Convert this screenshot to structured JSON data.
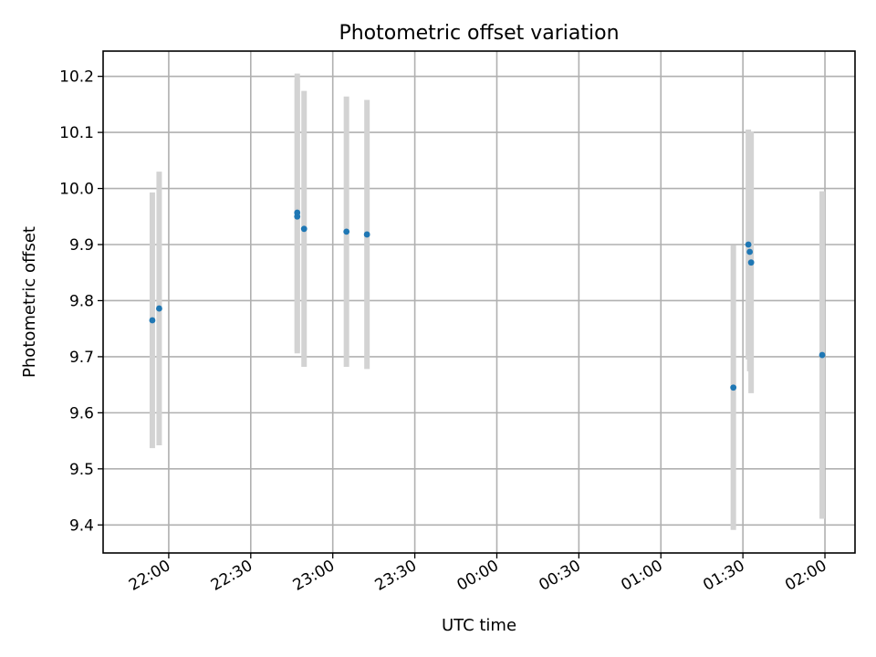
{
  "chart_data": {
    "type": "scatter",
    "title": "Photometric offset variation",
    "xlabel": "UTC time",
    "ylabel": "Photometric offset",
    "x_ticks": [
      "22:00",
      "22:30",
      "23:00",
      "23:30",
      "00:00",
      "00:30",
      "01:00",
      "01:30",
      "02:00"
    ],
    "y_ticks": [
      "9.4",
      "9.5",
      "9.6",
      "9.7",
      "9.8",
      "9.9",
      "10.0",
      "10.1",
      "10.2"
    ],
    "xlim": [
      "21:36:00",
      "02:11:00"
    ],
    "ylim": [
      9.35,
      10.245
    ],
    "grid": true,
    "error_bars": true,
    "colors": {
      "marker": "#1f77b4",
      "error_bar": "#d3d3d3"
    },
    "points": [
      {
        "time": "21:54:00",
        "value": 9.765,
        "error": 0.228
      },
      {
        "time": "21:56:30",
        "value": 9.786,
        "error": 0.244
      },
      {
        "time": "22:47:00",
        "value": 9.957,
        "error": 0.248
      },
      {
        "time": "22:47:00",
        "value": 9.95,
        "error": 0.244
      },
      {
        "time": "22:49:30",
        "value": 9.928,
        "error": 0.246
      },
      {
        "time": "23:05:00",
        "value": 9.923,
        "error": 0.241
      },
      {
        "time": "23:12:30",
        "value": 9.918,
        "error": 0.24
      },
      {
        "time": "01:26:30",
        "value": 9.645,
        "error": 0.254
      },
      {
        "time": "01:32:00",
        "value": 9.9,
        "error": 0.205
      },
      {
        "time": "01:32:30",
        "value": 9.887,
        "error": 0.213
      },
      {
        "time": "01:33:00",
        "value": 9.868,
        "error": 0.233
      },
      {
        "time": "01:59:00",
        "value": 9.703,
        "error": 0.292
      }
    ]
  }
}
